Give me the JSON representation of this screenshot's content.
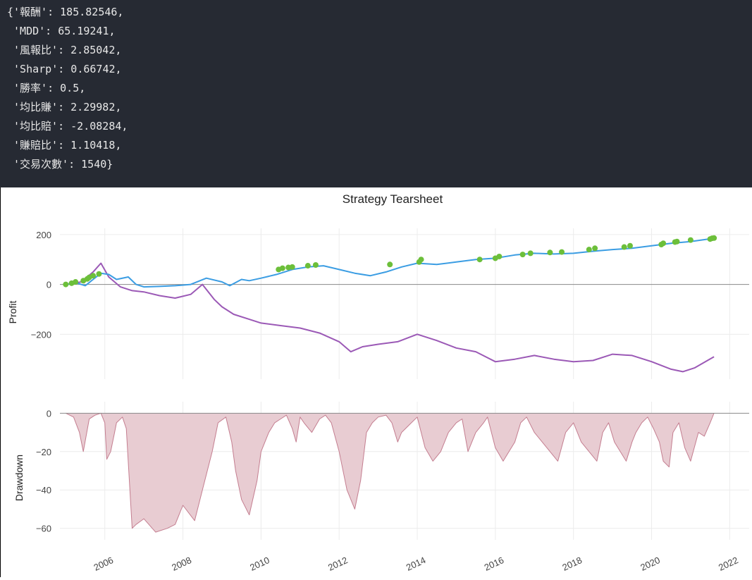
{
  "console": {
    "lines": [
      "{'報酬': 185.82546,",
      " 'MDD': 65.19241,",
      " '風報比': 2.85042,",
      " 'Sharp': 0.66742,",
      " '勝率': 0.5,",
      " '均比賺': 2.29982,",
      " '均比賠': -2.08284,",
      " '賺賠比': 1.10418,",
      " '交易次數': 1540}"
    ]
  },
  "colors": {
    "console_bg": "#262a33",
    "strategy_line": "#3b9de3",
    "benchmark_line": "#9b59b6",
    "trade_markers": "#6cbf3a",
    "drawdown_fill": "#e8ccd2",
    "drawdown_line": "#c47e90",
    "grid": "#ececec",
    "zero_line": "#888888"
  },
  "chart_data": [
    {
      "type": "line",
      "title": "Strategy Tearsheet",
      "ylabel": "Profit",
      "xlabel": "",
      "xlim": [
        2004.85,
        2022.5
      ],
      "ylim": [
        -380,
        225
      ],
      "yticks": [
        200,
        0,
        -200
      ],
      "ytick_labels": [
        "200",
        "0",
        "−200"
      ],
      "series": [
        {
          "name": "strategy",
          "x": [
            2005.0,
            2005.3,
            2005.5,
            2005.7,
            2005.9,
            2006.1,
            2006.3,
            2006.6,
            2006.8,
            2007.0,
            2007.4,
            2007.8,
            2008.2,
            2008.6,
            2009.0,
            2009.2,
            2009.5,
            2009.7,
            2010.0,
            2010.4,
            2010.8,
            2011.2,
            2011.6,
            2012.0,
            2012.4,
            2012.8,
            2013.2,
            2013.6,
            2014.0,
            2014.5,
            2015.0,
            2015.5,
            2016.0,
            2016.5,
            2017.0,
            2017.5,
            2018.0,
            2018.5,
            2019.0,
            2019.5,
            2020.0,
            2020.5,
            2021.0,
            2021.6
          ],
          "values": [
            0,
            5,
            -5,
            20,
            45,
            40,
            20,
            30,
            0,
            -10,
            -8,
            -5,
            0,
            25,
            10,
            -5,
            20,
            15,
            25,
            40,
            60,
            70,
            75,
            60,
            45,
            35,
            50,
            70,
            85,
            80,
            90,
            100,
            105,
            118,
            125,
            122,
            125,
            133,
            140,
            145,
            155,
            165,
            172,
            185
          ]
        },
        {
          "name": "benchmark",
          "x": [
            2005.0,
            2005.4,
            2005.7,
            2005.9,
            2006.1,
            2006.4,
            2006.7,
            2007.0,
            2007.4,
            2007.8,
            2008.2,
            2008.5,
            2008.8,
            2009.0,
            2009.3,
            2009.7,
            2010.0,
            2010.5,
            2011.0,
            2011.5,
            2012.0,
            2012.3,
            2012.6,
            2013.0,
            2013.5,
            2014.0,
            2014.5,
            2015.0,
            2015.5,
            2016.0,
            2016.5,
            2017.0,
            2017.5,
            2018.0,
            2018.5,
            2019.0,
            2019.5,
            2020.0,
            2020.5,
            2020.8,
            2021.1,
            2021.6
          ],
          "values": [
            0,
            10,
            50,
            85,
            30,
            -10,
            -25,
            -30,
            -45,
            -55,
            -40,
            0,
            -60,
            -90,
            -120,
            -140,
            -155,
            -165,
            -175,
            -195,
            -230,
            -270,
            -250,
            -240,
            -230,
            -200,
            -225,
            -255,
            -270,
            -310,
            -300,
            -285,
            -300,
            -310,
            -305,
            -280,
            -285,
            -310,
            -340,
            -350,
            -335,
            -290
          ]
        }
      ],
      "markers": {
        "name": "trades",
        "x": [
          2005.0,
          2005.15,
          2005.25,
          2005.45,
          2005.55,
          2005.6,
          2005.7,
          2005.85,
          2010.45,
          2010.55,
          2010.7,
          2010.8,
          2011.2,
          2011.4,
          2013.3,
          2014.05,
          2014.1,
          2015.6,
          2016.0,
          2016.1,
          2016.7,
          2016.9,
          2017.4,
          2017.7,
          2018.4,
          2018.55,
          2019.3,
          2019.45,
          2020.25,
          2020.3,
          2020.6,
          2020.65,
          2021.0,
          2021.5,
          2021.55,
          2021.6
        ],
        "values": [
          0,
          5,
          10,
          15,
          22,
          28,
          35,
          42,
          60,
          65,
          68,
          70,
          75,
          78,
          80,
          90,
          100,
          100,
          105,
          112,
          120,
          125,
          128,
          130,
          140,
          145,
          150,
          155,
          160,
          165,
          170,
          172,
          178,
          182,
          185,
          186
        ]
      }
    },
    {
      "type": "area",
      "title": "",
      "ylabel": "Drawdown",
      "xlabel": "",
      "xlim": [
        2004.85,
        2022.5
      ],
      "ylim": [
        -66,
        6
      ],
      "yticks": [
        0,
        -20,
        -40,
        -60
      ],
      "ytick_labels": [
        "0",
        "−20",
        "−40",
        "−60"
      ],
      "xticks": [
        2006,
        2008,
        2010,
        2012,
        2014,
        2016,
        2018,
        2020,
        2022
      ],
      "xtick_labels": [
        "2006",
        "2008",
        "2010",
        "2012",
        "2014",
        "2016",
        "2018",
        "2020",
        "2022"
      ],
      "series": [
        {
          "name": "drawdown",
          "x": [
            2005.0,
            2005.2,
            2005.35,
            2005.45,
            2005.6,
            2005.75,
            2005.9,
            2006.0,
            2006.05,
            2006.15,
            2006.25,
            2006.3,
            2006.45,
            2006.55,
            2006.7,
            2006.8,
            2007.0,
            2007.3,
            2007.6,
            2007.8,
            2008.0,
            2008.3,
            2008.5,
            2008.75,
            2008.9,
            2009.1,
            2009.25,
            2009.35,
            2009.5,
            2009.7,
            2009.9,
            2010.0,
            2010.2,
            2010.35,
            2010.5,
            2010.65,
            2010.8,
            2010.9,
            2011.0,
            2011.1,
            2011.3,
            2011.5,
            2011.65,
            2011.8,
            2012.0,
            2012.2,
            2012.4,
            2012.55,
            2012.7,
            2012.85,
            2013.0,
            2013.2,
            2013.35,
            2013.5,
            2013.6,
            2013.7,
            2013.85,
            2014.0,
            2014.2,
            2014.4,
            2014.6,
            2014.8,
            2015.0,
            2015.15,
            2015.3,
            2015.5,
            2015.7,
            2015.8,
            2016.0,
            2016.2,
            2016.35,
            2016.5,
            2016.65,
            2016.8,
            2017.0,
            2017.2,
            2017.4,
            2017.6,
            2017.8,
            2018.0,
            2018.2,
            2018.4,
            2018.6,
            2018.75,
            2018.9,
            2019.05,
            2019.2,
            2019.35,
            2019.5,
            2019.6,
            2019.75,
            2019.9,
            2020.05,
            2020.2,
            2020.3,
            2020.45,
            2020.55,
            2020.7,
            2020.85,
            2021.0,
            2021.2,
            2021.35,
            2021.5,
            2021.6
          ],
          "values": [
            0,
            -2,
            -10,
            -20,
            -3,
            -1,
            0,
            -5,
            -24,
            -20,
            -10,
            -5,
            -2,
            -8,
            -60,
            -58,
            -55,
            -62,
            -60,
            -58,
            -48,
            -56,
            -40,
            -20,
            -5,
            -2,
            -15,
            -30,
            -45,
            -53,
            -35,
            -20,
            -10,
            -5,
            -3,
            -1,
            -8,
            -15,
            -2,
            -5,
            -10,
            -3,
            -1,
            -5,
            -20,
            -40,
            -50,
            -35,
            -10,
            -5,
            -2,
            -1,
            -5,
            -15,
            -10,
            -8,
            -5,
            -2,
            -18,
            -25,
            -20,
            -10,
            -5,
            -3,
            -20,
            -10,
            -5,
            -2,
            -18,
            -25,
            -20,
            -15,
            -5,
            -2,
            -10,
            -15,
            -20,
            -25,
            -10,
            -5,
            -15,
            -20,
            -25,
            -10,
            -5,
            -15,
            -20,
            -25,
            -15,
            -10,
            -5,
            -2,
            -8,
            -15,
            -25,
            -28,
            -10,
            -5,
            -18,
            -25,
            -10,
            -12,
            -5,
            0
          ]
        }
      ]
    }
  ]
}
